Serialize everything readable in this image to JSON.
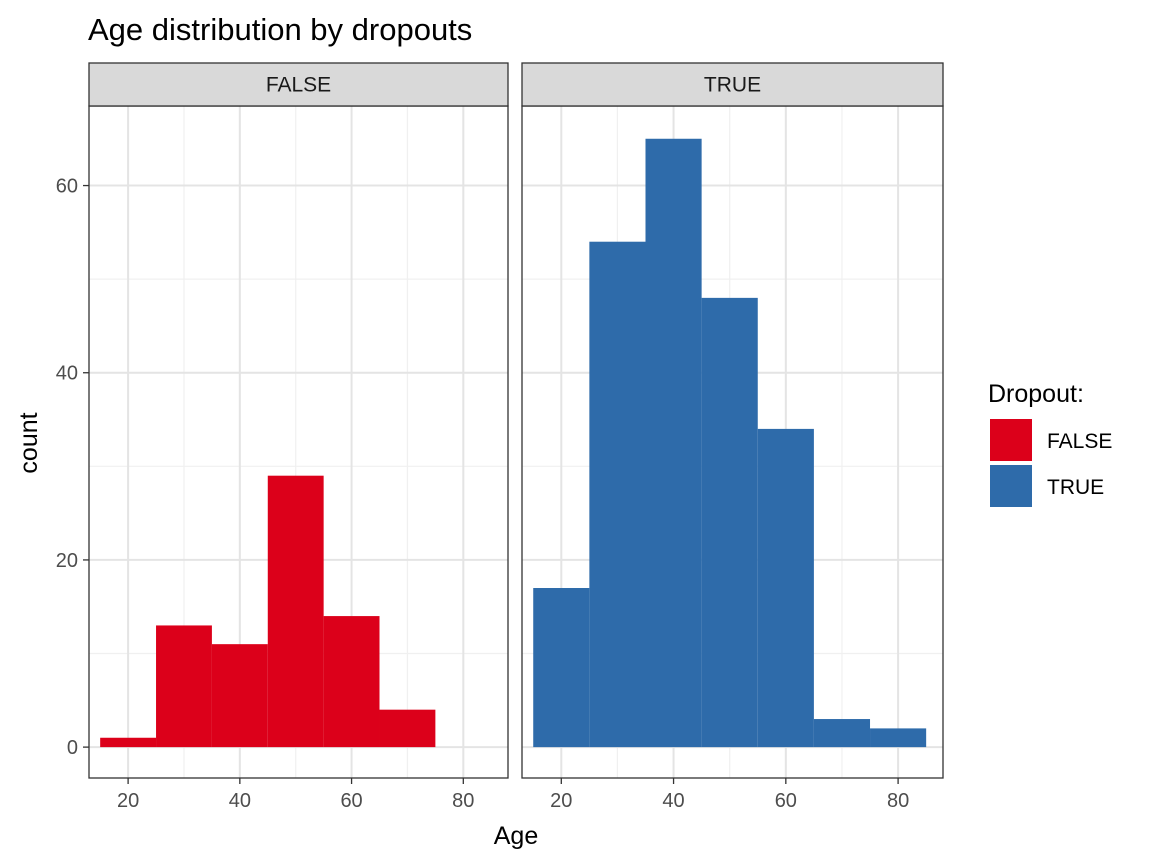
{
  "chart_data": {
    "type": "bar",
    "subtype": "faceted-histogram",
    "title": "Age distribution by dropouts",
    "xlabel": "Age",
    "ylabel": "count",
    "xlim": [
      13,
      88
    ],
    "ylim": [
      -3.3,
      68.5
    ],
    "x_ticks": [
      20,
      40,
      60,
      80
    ],
    "y_ticks": [
      0,
      20,
      40,
      60
    ],
    "bin_width": 10,
    "grid": true,
    "legend": {
      "title": "Dropout:",
      "position": "right",
      "entries": [
        {
          "label": "FALSE",
          "color": "#DC001A"
        },
        {
          "label": "TRUE",
          "color": "#2E6BAA"
        }
      ]
    },
    "facets": [
      {
        "label": "FALSE",
        "color": "#DC001A",
        "bins": [
          {
            "x": [
              15,
              25
            ],
            "count": 1
          },
          {
            "x": [
              25,
              35
            ],
            "count": 13
          },
          {
            "x": [
              35,
              45
            ],
            "count": 11
          },
          {
            "x": [
              45,
              55
            ],
            "count": 29
          },
          {
            "x": [
              55,
              65
            ],
            "count": 14
          },
          {
            "x": [
              65,
              75
            ],
            "count": 4
          }
        ]
      },
      {
        "label": "TRUE",
        "color": "#2E6BAA",
        "bins": [
          {
            "x": [
              15,
              25
            ],
            "count": 17
          },
          {
            "x": [
              25,
              35
            ],
            "count": 54
          },
          {
            "x": [
              35,
              45
            ],
            "count": 65
          },
          {
            "x": [
              45,
              55
            ],
            "count": 48
          },
          {
            "x": [
              55,
              65
            ],
            "count": 34
          },
          {
            "x": [
              65,
              75
            ],
            "count": 3
          },
          {
            "x": [
              75,
              85
            ],
            "count": 2
          }
        ]
      }
    ]
  }
}
